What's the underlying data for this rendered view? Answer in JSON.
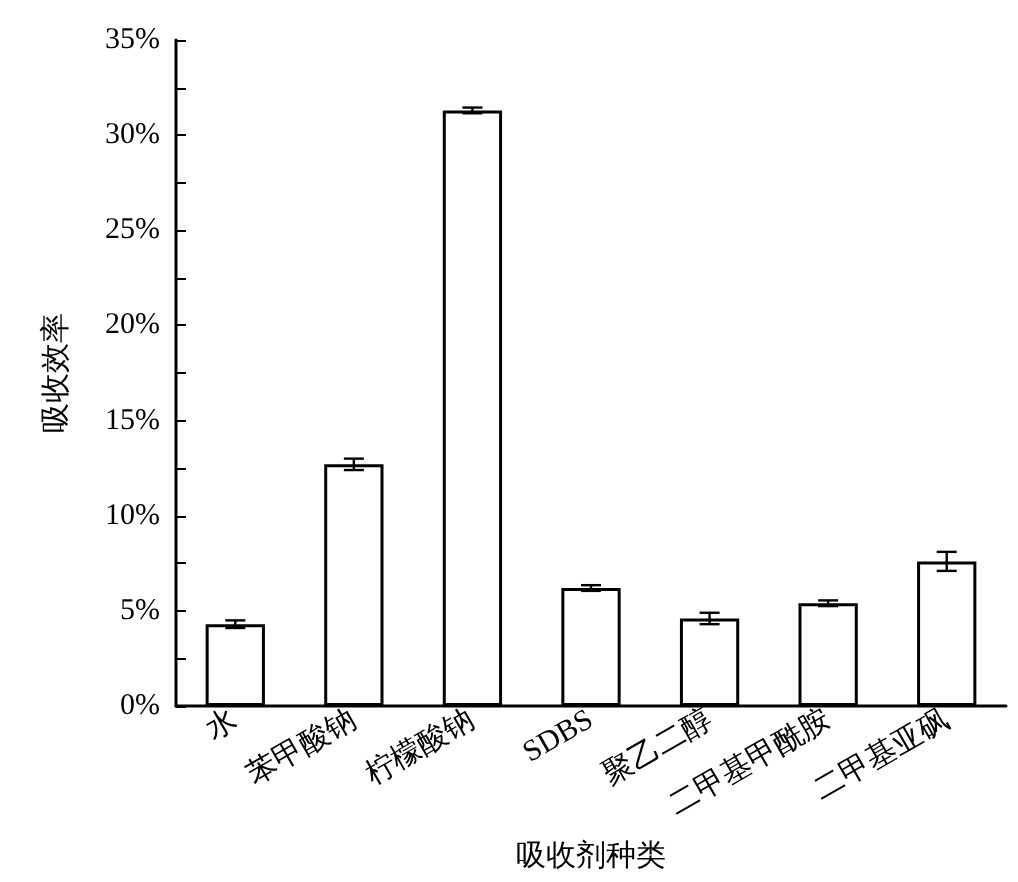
{
  "chart_data": {
    "type": "bar",
    "xlabel": "吸收剂种类",
    "ylabel": "吸收效率",
    "categories": [
      "水",
      "苯甲酸钠",
      "柠檬酸钠",
      "SDBS",
      "聚乙二醇",
      "二甲基甲酰胺",
      "二甲基亚砜"
    ],
    "values": [
      4.3,
      12.7,
      31.3,
      6.2,
      4.6,
      5.4,
      7.6
    ],
    "errors": [
      0.2,
      0.3,
      0.15,
      0.15,
      0.3,
      0.15,
      0.5
    ],
    "color": "#ffffff",
    "ylim": [
      0,
      35
    ],
    "yticks": [
      {
        "value": 0,
        "label": "0%"
      },
      {
        "value": 2.5,
        "label": null
      },
      {
        "value": 5,
        "label": "5%"
      },
      {
        "value": 7.5,
        "label": null
      },
      {
        "value": 10,
        "label": "10%"
      },
      {
        "value": 12.5,
        "label": null
      },
      {
        "value": 15,
        "label": "15%"
      },
      {
        "value": 17.5,
        "label": null
      },
      {
        "value": 20,
        "label": "20%"
      },
      {
        "value": 22.5,
        "label": null
      },
      {
        "value": 25,
        "label": "25%"
      },
      {
        "value": 27.5,
        "label": null
      },
      {
        "value": 30,
        "label": "30%"
      },
      {
        "value": 32.5,
        "label": null
      },
      {
        "value": 35,
        "label": "35%"
      }
    ],
    "grid": false
  }
}
